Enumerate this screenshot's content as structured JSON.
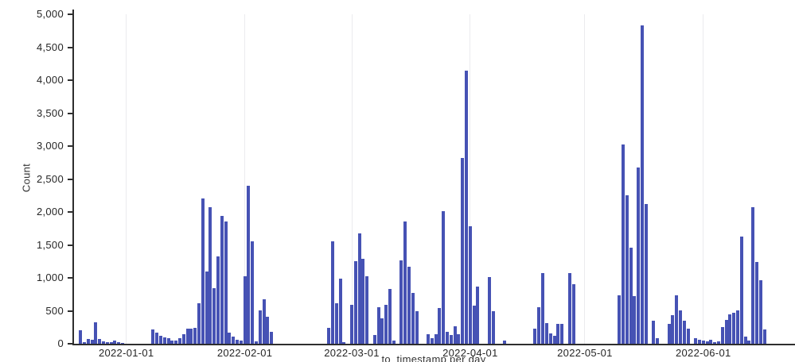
{
  "colors": {
    "bar": "#4652b4",
    "axis": "#2e2e2e",
    "grid": "#ebebee",
    "tick_text": "#262626",
    "axis_title_text": "#333333",
    "background": "#ffffff"
  },
  "chart_data": {
    "type": "bar",
    "title": "",
    "xlabel": "to_timestamp per day",
    "ylabel": "Count",
    "ylim": [
      0,
      5000
    ],
    "grid": "vertical month gridlines only",
    "legend": "none",
    "x_domain": [
      "2021-12-18",
      "2022-06-25"
    ],
    "y_ticks": [
      {
        "value": 0,
        "label": "0"
      },
      {
        "value": 500,
        "label": "500"
      },
      {
        "value": 1000,
        "label": "1,000"
      },
      {
        "value": 1500,
        "label": "1,500"
      },
      {
        "value": 2000,
        "label": "2,000"
      },
      {
        "value": 2500,
        "label": "2,500"
      },
      {
        "value": 3000,
        "label": "3,000"
      },
      {
        "value": 3500,
        "label": "3,500"
      },
      {
        "value": 4000,
        "label": "4,000"
      },
      {
        "value": 4500,
        "label": "4,500"
      },
      {
        "value": 5000,
        "label": "5,000"
      }
    ],
    "x_ticks": [
      {
        "date": "2022-01-01",
        "label": "2022-01-01"
      },
      {
        "date": "2022-02-01",
        "label": "2022-02-01"
      },
      {
        "date": "2022-03-01",
        "label": "2022-03-01"
      },
      {
        "date": "2022-04-01",
        "label": "2022-04-01"
      },
      {
        "date": "2022-05-01",
        "label": "2022-05-01"
      },
      {
        "date": "2022-06-01",
        "label": "2022-06-01"
      }
    ],
    "series": [
      [
        "2021-12-20",
        200
      ],
      [
        "2021-12-21",
        30
      ],
      [
        "2021-12-22",
        70
      ],
      [
        "2021-12-23",
        60
      ],
      [
        "2021-12-24",
        330
      ],
      [
        "2021-12-25",
        70
      ],
      [
        "2021-12-26",
        35
      ],
      [
        "2021-12-27",
        25
      ],
      [
        "2021-12-28",
        20
      ],
      [
        "2021-12-29",
        50
      ],
      [
        "2021-12-30",
        20
      ],
      [
        "2021-12-31",
        10
      ],
      [
        "2022-01-08",
        215
      ],
      [
        "2022-01-09",
        165
      ],
      [
        "2022-01-10",
        120
      ],
      [
        "2022-01-11",
        95
      ],
      [
        "2022-01-12",
        80
      ],
      [
        "2022-01-13",
        50
      ],
      [
        "2022-01-14",
        45
      ],
      [
        "2022-01-15",
        85
      ],
      [
        "2022-01-16",
        150
      ],
      [
        "2022-01-17",
        230
      ],
      [
        "2022-01-18",
        230
      ],
      [
        "2022-01-19",
        240
      ],
      [
        "2022-01-20",
        610
      ],
      [
        "2022-01-21",
        2210
      ],
      [
        "2022-01-22",
        1100
      ],
      [
        "2022-01-23",
        2070
      ],
      [
        "2022-01-24",
        840
      ],
      [
        "2022-01-25",
        1330
      ],
      [
        "2022-01-26",
        1940
      ],
      [
        "2022-01-27",
        1850
      ],
      [
        "2022-01-28",
        170
      ],
      [
        "2022-01-29",
        110
      ],
      [
        "2022-01-30",
        60
      ],
      [
        "2022-01-31",
        45
      ],
      [
        "2022-02-01",
        1030
      ],
      [
        "2022-02-02",
        2400
      ],
      [
        "2022-02-03",
        1560
      ],
      [
        "2022-02-04",
        40
      ],
      [
        "2022-02-05",
        505
      ],
      [
        "2022-02-06",
        675
      ],
      [
        "2022-02-07",
        410
      ],
      [
        "2022-02-08",
        180
      ],
      [
        "2022-02-23",
        240
      ],
      [
        "2022-02-24",
        1550
      ],
      [
        "2022-02-25",
        615
      ],
      [
        "2022-02-26",
        985
      ],
      [
        "2022-02-27",
        30
      ],
      [
        "2022-03-01",
        590
      ],
      [
        "2022-03-02",
        1250
      ],
      [
        "2022-03-03",
        1675
      ],
      [
        "2022-03-04",
        1285
      ],
      [
        "2022-03-05",
        1020
      ],
      [
        "2022-03-07",
        130
      ],
      [
        "2022-03-08",
        560
      ],
      [
        "2022-03-09",
        385
      ],
      [
        "2022-03-10",
        590
      ],
      [
        "2022-03-11",
        830
      ],
      [
        "2022-03-12",
        50
      ],
      [
        "2022-03-14",
        1260
      ],
      [
        "2022-03-15",
        1860
      ],
      [
        "2022-03-16",
        1165
      ],
      [
        "2022-03-17",
        770
      ],
      [
        "2022-03-18",
        490
      ],
      [
        "2022-03-21",
        145
      ],
      [
        "2022-03-22",
        90
      ],
      [
        "2022-03-23",
        140
      ],
      [
        "2022-03-24",
        540
      ],
      [
        "2022-03-25",
        2010
      ],
      [
        "2022-03-26",
        175
      ],
      [
        "2022-03-27",
        130
      ],
      [
        "2022-03-28",
        270
      ],
      [
        "2022-03-29",
        150
      ],
      [
        "2022-03-30",
        2820
      ],
      [
        "2022-03-31",
        4140
      ],
      [
        "2022-04-01",
        1780
      ],
      [
        "2022-04-02",
        575
      ],
      [
        "2022-04-03",
        865
      ],
      [
        "2022-04-06",
        1010
      ],
      [
        "2022-04-07",
        490
      ],
      [
        "2022-04-10",
        50
      ],
      [
        "2022-04-18",
        230
      ],
      [
        "2022-04-19",
        560
      ],
      [
        "2022-04-20",
        1070
      ],
      [
        "2022-04-21",
        310
      ],
      [
        "2022-04-22",
        160
      ],
      [
        "2022-04-23",
        115
      ],
      [
        "2022-04-24",
        300
      ],
      [
        "2022-04-25",
        305
      ],
      [
        "2022-04-27",
        1075
      ],
      [
        "2022-04-28",
        900
      ],
      [
        "2022-05-10",
        730
      ],
      [
        "2022-05-11",
        3030
      ],
      [
        "2022-05-12",
        2250
      ],
      [
        "2022-05-13",
        1460
      ],
      [
        "2022-05-14",
        720
      ],
      [
        "2022-05-15",
        2680
      ],
      [
        "2022-05-16",
        4830
      ],
      [
        "2022-05-17",
        2120
      ],
      [
        "2022-05-19",
        345
      ],
      [
        "2022-05-20",
        85
      ],
      [
        "2022-05-23",
        300
      ],
      [
        "2022-05-24",
        435
      ],
      [
        "2022-05-25",
        735
      ],
      [
        "2022-05-26",
        500
      ],
      [
        "2022-05-27",
        350
      ],
      [
        "2022-05-28",
        230
      ],
      [
        "2022-05-30",
        85
      ],
      [
        "2022-05-31",
        60
      ],
      [
        "2022-06-01",
        48
      ],
      [
        "2022-06-02",
        40
      ],
      [
        "2022-06-03",
        60
      ],
      [
        "2022-06-04",
        28
      ],
      [
        "2022-06-05",
        40
      ],
      [
        "2022-06-06",
        250
      ],
      [
        "2022-06-07",
        360
      ],
      [
        "2022-06-08",
        440
      ],
      [
        "2022-06-09",
        465
      ],
      [
        "2022-06-10",
        500
      ],
      [
        "2022-06-11",
        1630
      ],
      [
        "2022-06-12",
        110
      ],
      [
        "2022-06-13",
        50
      ],
      [
        "2022-06-14",
        2070
      ],
      [
        "2022-06-15",
        1240
      ],
      [
        "2022-06-16",
        960
      ],
      [
        "2022-06-17",
        215
      ]
    ]
  }
}
